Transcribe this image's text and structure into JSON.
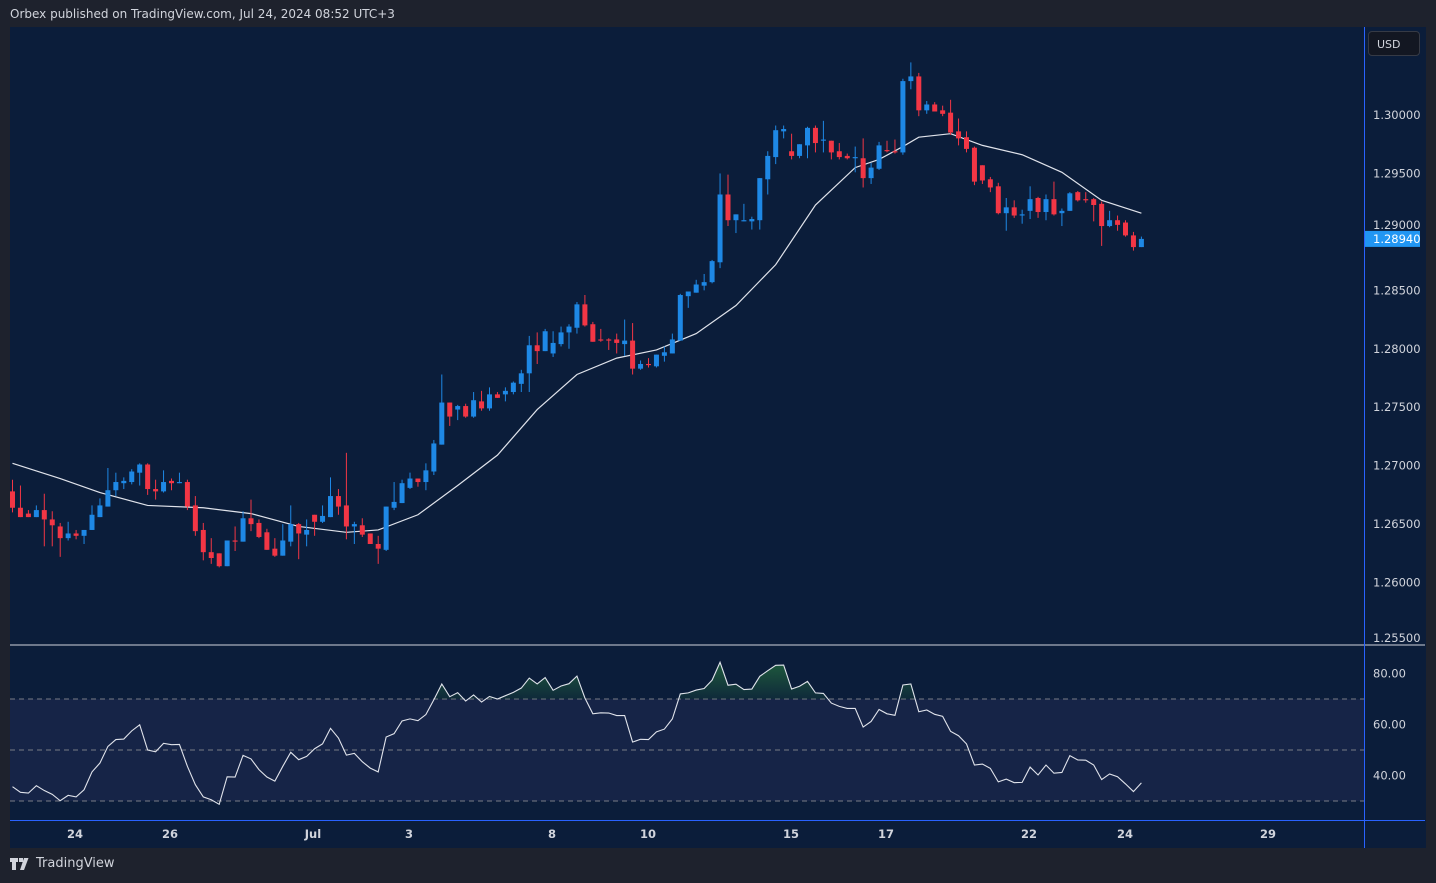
{
  "header": {
    "publisher_line": "Orbex published on TradingView.com, Jul 24, 2024 08:52 UTC+3"
  },
  "price_axis": {
    "currency": "USD",
    "last_price_label": "1.28940"
  },
  "footer": {
    "brand": "TradingView"
  },
  "colors": {
    "background": "#0b1d3a",
    "frame": "#1e222d",
    "up": "#1e88e5",
    "down": "#f23645",
    "ma_line": "#e0e3eb",
    "rsi_line": "#e0e3eb",
    "rsi_band": "#162447",
    "overbought_fill": "#1f5c3c",
    "axis_line": "#2962ff",
    "last_price": "#2196f3"
  },
  "chart_data": [
    {
      "type": "candlestick",
      "title": "",
      "ylim": [
        1.2525,
        1.3055
      ],
      "y_ticks": [
        "1.30000",
        "1.29500",
        "1.29000",
        "1.28500",
        "1.28000",
        "1.27500",
        "1.27000",
        "1.26500",
        "1.26000",
        "1.25500"
      ],
      "x_ticks": [
        "24",
        "26",
        "Jul",
        "3",
        "8",
        "10",
        "15",
        "17",
        "22",
        "24",
        "29"
      ],
      "grid": false,
      "last_price": 1.2894,
      "ohlc": [
        [
          1.2678,
          1.2688,
          1.266,
          1.2664
        ],
        [
          1.2664,
          1.2683,
          1.2656,
          1.2656
        ],
        [
          1.2659,
          1.2662,
          1.2656,
          1.2656
        ],
        [
          1.2656,
          1.2666,
          1.2656,
          1.2662
        ],
        [
          1.2662,
          1.2676,
          1.2631,
          1.2654
        ],
        [
          1.2654,
          1.2661,
          1.2631,
          1.2649
        ],
        [
          1.2648,
          1.2651,
          1.2622,
          1.2638
        ],
        [
          1.2638,
          1.2652,
          1.2636,
          1.2642
        ],
        [
          1.2642,
          1.2645,
          1.2637,
          1.264
        ],
        [
          1.264,
          1.2645,
          1.2633,
          1.2645
        ],
        [
          1.2645,
          1.2666,
          1.2645,
          1.2658
        ],
        [
          1.2656,
          1.2672,
          1.2656,
          1.2666
        ],
        [
          1.2665,
          1.2698,
          1.2665,
          1.2679
        ],
        [
          1.2679,
          1.2694,
          1.2674,
          1.2686
        ],
        [
          1.2685,
          1.269,
          1.268,
          1.2687
        ],
        [
          1.2686,
          1.2697,
          1.2684,
          1.2695
        ],
        [
          1.2694,
          1.2702,
          1.2683,
          1.2701
        ],
        [
          1.2701,
          1.2702,
          1.2675,
          1.268
        ],
        [
          1.268,
          1.2688,
          1.2671,
          1.2678
        ],
        [
          1.2678,
          1.2696,
          1.2677,
          1.2686
        ],
        [
          1.2687,
          1.2689,
          1.2679,
          1.2685
        ],
        [
          1.2685,
          1.2694,
          1.2685,
          1.2686
        ],
        [
          1.2686,
          1.2688,
          1.2662,
          1.2665
        ],
        [
          1.2666,
          1.2674,
          1.264,
          1.2644
        ],
        [
          1.2645,
          1.2651,
          1.2619,
          1.2626
        ],
        [
          1.2626,
          1.2638,
          1.2616,
          1.2621
        ],
        [
          1.2625,
          1.2625,
          1.2613,
          1.2614
        ],
        [
          1.2614,
          1.2636,
          1.2614,
          1.2636
        ],
        [
          1.2636,
          1.2648,
          1.2627,
          1.2635
        ],
        [
          1.2635,
          1.2661,
          1.2635,
          1.2655
        ],
        [
          1.2655,
          1.2671,
          1.2644,
          1.265
        ],
        [
          1.2651,
          1.2654,
          1.2638,
          1.2639
        ],
        [
          1.2643,
          1.2646,
          1.2628,
          1.2628
        ],
        [
          1.2629,
          1.2638,
          1.2622,
          1.2623
        ],
        [
          1.2623,
          1.265,
          1.2623,
          1.2636
        ],
        [
          1.2635,
          1.2666,
          1.2631,
          1.265
        ],
        [
          1.265,
          1.2651,
          1.262,
          1.2642
        ],
        [
          1.2641,
          1.2654,
          1.2631,
          1.2645
        ],
        [
          1.2658,
          1.2658,
          1.264,
          1.2652
        ],
        [
          1.2652,
          1.2666,
          1.2651,
          1.2657
        ],
        [
          1.2656,
          1.269,
          1.2656,
          1.2674
        ],
        [
          1.2674,
          1.268,
          1.2658,
          1.2665
        ],
        [
          1.2666,
          1.2711,
          1.2637,
          1.2648
        ],
        [
          1.2648,
          1.2652,
          1.2633,
          1.265
        ],
        [
          1.2649,
          1.2655,
          1.2639,
          1.2641
        ],
        [
          1.2642,
          1.2642,
          1.2633,
          1.2633
        ],
        [
          1.2633,
          1.264,
          1.2616,
          1.2629
        ],
        [
          1.2628,
          1.2665,
          1.2627,
          1.2665
        ],
        [
          1.2664,
          1.2686,
          1.2662,
          1.2669
        ],
        [
          1.2668,
          1.2688,
          1.2668,
          1.2685
        ],
        [
          1.2681,
          1.2694,
          1.268,
          1.2689
        ],
        [
          1.2689,
          1.2689,
          1.2682,
          1.2686
        ],
        [
          1.2686,
          1.2702,
          1.2679,
          1.2696
        ],
        [
          1.2695,
          1.2722,
          1.2692,
          1.2719
        ],
        [
          1.2718,
          1.2778,
          1.2718,
          1.2754
        ],
        [
          1.2754,
          1.2754,
          1.2734,
          1.2742
        ],
        [
          1.2748,
          1.2752,
          1.2739,
          1.2751
        ],
        [
          1.2751,
          1.2753,
          1.2741,
          1.2742
        ],
        [
          1.2742,
          1.2763,
          1.2741,
          1.2756
        ],
        [
          1.2755,
          1.2764,
          1.2747,
          1.2749
        ],
        [
          1.2749,
          1.2767,
          1.2747,
          1.2761
        ],
        [
          1.2761,
          1.2763,
          1.2758,
          1.2758
        ],
        [
          1.2761,
          1.2767,
          1.2755,
          1.2764
        ],
        [
          1.2763,
          1.2772,
          1.2761,
          1.2771
        ],
        [
          1.277,
          1.2782,
          1.2763,
          1.2779
        ],
        [
          1.2779,
          1.2811,
          1.2763,
          1.2803
        ],
        [
          1.2803,
          1.2814,
          1.2787,
          1.2798
        ],
        [
          1.2798,
          1.2817,
          1.2798,
          1.2815
        ],
        [
          1.2796,
          1.2815,
          1.2793,
          1.2805
        ],
        [
          1.2804,
          1.2819,
          1.2802,
          1.2814
        ],
        [
          1.2814,
          1.2821,
          1.28,
          1.2819
        ],
        [
          1.2818,
          1.284,
          1.2813,
          1.2838
        ],
        [
          1.2838,
          1.2846,
          1.2819,
          1.282
        ],
        [
          1.2821,
          1.2823,
          1.2806,
          1.2806
        ],
        [
          1.2808,
          1.2817,
          1.2806,
          1.2807
        ],
        [
          1.2808,
          1.2809,
          1.2799,
          1.2807
        ],
        [
          1.2808,
          1.2813,
          1.2796,
          1.2805
        ],
        [
          1.2804,
          1.2825,
          1.2794,
          1.2807
        ],
        [
          1.2807,
          1.2822,
          1.2778,
          1.2783
        ],
        [
          1.2783,
          1.279,
          1.2782,
          1.2787
        ],
        [
          1.2787,
          1.2792,
          1.2784,
          1.2786
        ],
        [
          1.2785,
          1.2795,
          1.2784,
          1.2795
        ],
        [
          1.2794,
          1.2802,
          1.2789,
          1.2797
        ],
        [
          1.2796,
          1.2813,
          1.2796,
          1.2808
        ],
        [
          1.2807,
          1.2847,
          1.2807,
          1.2846
        ],
        [
          1.2845,
          1.2849,
          1.2835,
          1.2849
        ],
        [
          1.2848,
          1.2859,
          1.2848,
          1.2855
        ],
        [
          1.2854,
          1.2864,
          1.285,
          1.2857
        ],
        [
          1.2857,
          1.2876,
          1.2856,
          1.2875
        ],
        [
          1.2874,
          1.295,
          1.2869,
          1.2932
        ],
        [
          1.2932,
          1.2949,
          1.2905,
          1.291
        ],
        [
          1.291,
          1.2915,
          1.2899,
          1.2915
        ],
        [
          1.2909,
          1.2924,
          1.2909,
          1.291
        ],
        [
          1.2909,
          1.2913,
          1.2902,
          1.2911
        ],
        [
          1.291,
          1.2946,
          1.2902,
          1.2946
        ],
        [
          1.2945,
          1.2969,
          1.2932,
          1.2965
        ],
        [
          1.2964,
          1.2991,
          1.2958,
          1.2987
        ],
        [
          1.2986,
          1.2991,
          1.298,
          1.2988
        ],
        [
          1.2969,
          1.2984,
          1.2962,
          1.2965
        ],
        [
          1.2965,
          1.2975,
          1.2963,
          1.2975
        ],
        [
          1.2974,
          1.299,
          1.2963,
          1.2989
        ],
        [
          1.2989,
          1.2991,
          1.2968,
          1.2976
        ],
        [
          1.2978,
          1.2995,
          1.2968,
          1.2979
        ],
        [
          1.2978,
          1.2978,
          1.2962,
          1.2968
        ],
        [
          1.2969,
          1.2976,
          1.2962,
          1.2964
        ],
        [
          1.2965,
          1.2967,
          1.2962,
          1.2963
        ],
        [
          1.2963,
          1.2973,
          1.2951,
          1.2964
        ],
        [
          1.2963,
          1.298,
          1.2938,
          1.2946
        ],
        [
          1.2946,
          1.2959,
          1.2941,
          1.2955
        ],
        [
          1.2954,
          1.2977,
          1.2953,
          1.2974
        ],
        [
          1.297,
          1.2978,
          1.2968,
          1.2969
        ],
        [
          1.2969,
          1.2979,
          1.2967,
          1.2968
        ],
        [
          1.2968,
          1.3031,
          1.2966,
          1.3029
        ],
        [
          1.3029,
          1.3045,
          1.3022,
          1.3033
        ],
        [
          1.3033,
          1.3036,
          1.2999,
          1.3004
        ],
        [
          1.3004,
          1.3012,
          1.3001,
          1.3009
        ],
        [
          1.3009,
          1.3011,
          1.3003,
          1.3003
        ],
        [
          1.3004,
          1.3008,
          1.2999,
          1.3001
        ],
        [
          1.3002,
          1.3013,
          1.2983,
          1.2985
        ],
        [
          1.2986,
          1.2997,
          1.2974,
          1.298
        ],
        [
          1.2981,
          1.2986,
          1.2968,
          1.2971
        ],
        [
          1.2972,
          1.2973,
          1.294,
          1.2943
        ],
        [
          1.2957,
          1.2957,
          1.2941,
          1.2944
        ],
        [
          1.2945,
          1.2947,
          1.2934,
          1.2938
        ],
        [
          1.2939,
          1.2942,
          1.2915,
          1.2916
        ],
        [
          1.2916,
          1.2929,
          1.2901,
          1.2921
        ],
        [
          1.2921,
          1.2927,
          1.2912,
          1.2914
        ],
        [
          1.2914,
          1.2919,
          1.2907,
          1.2915
        ],
        [
          1.2918,
          1.2939,
          1.2911,
          1.2928
        ],
        [
          1.2929,
          1.293,
          1.2912,
          1.2917
        ],
        [
          1.2917,
          1.2932,
          1.291,
          1.2928
        ],
        [
          1.2928,
          1.2943,
          1.2914,
          1.2915
        ],
        [
          1.2916,
          1.292,
          1.2905,
          1.2918
        ],
        [
          1.2918,
          1.2934,
          1.2918,
          1.2933
        ],
        [
          1.2934,
          1.2935,
          1.2926,
          1.2927
        ],
        [
          1.2928,
          1.2934,
          1.2925,
          1.2927
        ],
        [
          1.2928,
          1.2929,
          1.2909,
          1.2923
        ],
        [
          1.2924,
          1.2926,
          1.2888,
          1.2905
        ],
        [
          1.2905,
          1.2918,
          1.2904,
          1.291
        ],
        [
          1.291,
          1.2914,
          1.2901,
          1.2906
        ],
        [
          1.2908,
          1.291,
          1.2896,
          1.2897
        ],
        [
          1.2897,
          1.29,
          1.2884,
          1.2887
        ],
        [
          1.2887,
          1.2896,
          1.2887,
          1.2894
        ]
      ],
      "moving_average": [
        {
          "i": 0,
          "v": 1.2702
        },
        {
          "i": 6,
          "v": 1.2689
        },
        {
          "i": 11,
          "v": 1.2677
        },
        {
          "i": 17,
          "v": 1.2666
        },
        {
          "i": 24,
          "v": 1.2664
        },
        {
          "i": 30,
          "v": 1.2659
        },
        {
          "i": 36,
          "v": 1.2648
        },
        {
          "i": 42,
          "v": 1.2643
        },
        {
          "i": 46,
          "v": 1.2645
        },
        {
          "i": 51,
          "v": 1.2658
        },
        {
          "i": 56,
          "v": 1.2683
        },
        {
          "i": 61,
          "v": 1.2709
        },
        {
          "i": 66,
          "v": 1.2748
        },
        {
          "i": 71,
          "v": 1.2778
        },
        {
          "i": 76,
          "v": 1.2792
        },
        {
          "i": 81,
          "v": 1.2799
        },
        {
          "i": 86,
          "v": 1.2813
        },
        {
          "i": 91,
          "v": 1.2837
        },
        {
          "i": 96,
          "v": 1.2872
        },
        {
          "i": 101,
          "v": 1.2923
        },
        {
          "i": 106,
          "v": 1.2955
        },
        {
          "i": 109,
          "v": 1.2962
        },
        {
          "i": 112,
          "v": 1.2973
        },
        {
          "i": 114,
          "v": 1.2981
        },
        {
          "i": 118,
          "v": 1.2984
        },
        {
          "i": 122,
          "v": 1.2974
        },
        {
          "i": 127,
          "v": 1.2966
        },
        {
          "i": 132,
          "v": 1.2951
        },
        {
          "i": 137,
          "v": 1.2927
        },
        {
          "i": 142,
          "v": 1.2916
        }
      ]
    },
    {
      "type": "line",
      "title": "",
      "ylim": [
        22,
        92
      ],
      "y_ticks": [
        "80.00",
        "60.00",
        "40.00"
      ],
      "levels": [
        70,
        50,
        30
      ],
      "rsi": [
        35.6,
        33.4,
        33.1,
        36.0,
        34.1,
        32.6,
        30.1,
        32.2,
        31.6,
        34.4,
        41.4,
        44.9,
        51.4,
        54.1,
        54.3,
        57.5,
        59.9,
        50.0,
        49.3,
        52.6,
        52.1,
        52.2,
        43.6,
        36.4,
        31.6,
        30.5,
        28.7,
        39.5,
        39.4,
        47.9,
        46.5,
        42.3,
        39.4,
        37.8,
        43.6,
        49.1,
        46.2,
        47.5,
        50.5,
        52.4,
        58.5,
        54.7,
        48.0,
        48.7,
        45.4,
        42.9,
        41.4,
        55.1,
        56.4,
        61.4,
        62.2,
        61.5,
        63.9,
        69.7,
        75.9,
        70.9,
        72.5,
        69.2,
        71.6,
        68.8,
        71.0,
        70.0,
        71.3,
        72.6,
        74.3,
        78.2,
        75.9,
        78.4,
        73.4,
        75.1,
        76.0,
        79.0,
        70.4,
        64.2,
        64.6,
        64.5,
        63.5,
        63.5,
        53.1,
        54.2,
        54.1,
        57.1,
        58.2,
        62.2,
        72.0,
        72.4,
        73.5,
        74.1,
        77.4,
        84.4,
        75.4,
        75.8,
        73.7,
        73.9,
        78.9,
        81.1,
        83.2,
        83.3,
        73.9,
        75.0,
        76.9,
        72.4,
        72.2,
        68.4,
        67.1,
        66.3,
        66.3,
        59.0,
        61.2,
        65.9,
        64.2,
        63.6,
        75.5,
        75.9,
        65.0,
        65.7,
        64.0,
        63.2,
        57.3,
        55.6,
        52.4,
        44.1,
        44.5,
        42.8,
        37.5,
        38.6,
        37.2,
        37.3,
        43.3,
        40.2,
        44.1,
        40.9,
        41.2,
        47.8,
        46.1,
        46.0,
        44.1,
        38.4,
        40.6,
        39.5,
        36.7,
        33.7,
        37.1
      ]
    }
  ]
}
